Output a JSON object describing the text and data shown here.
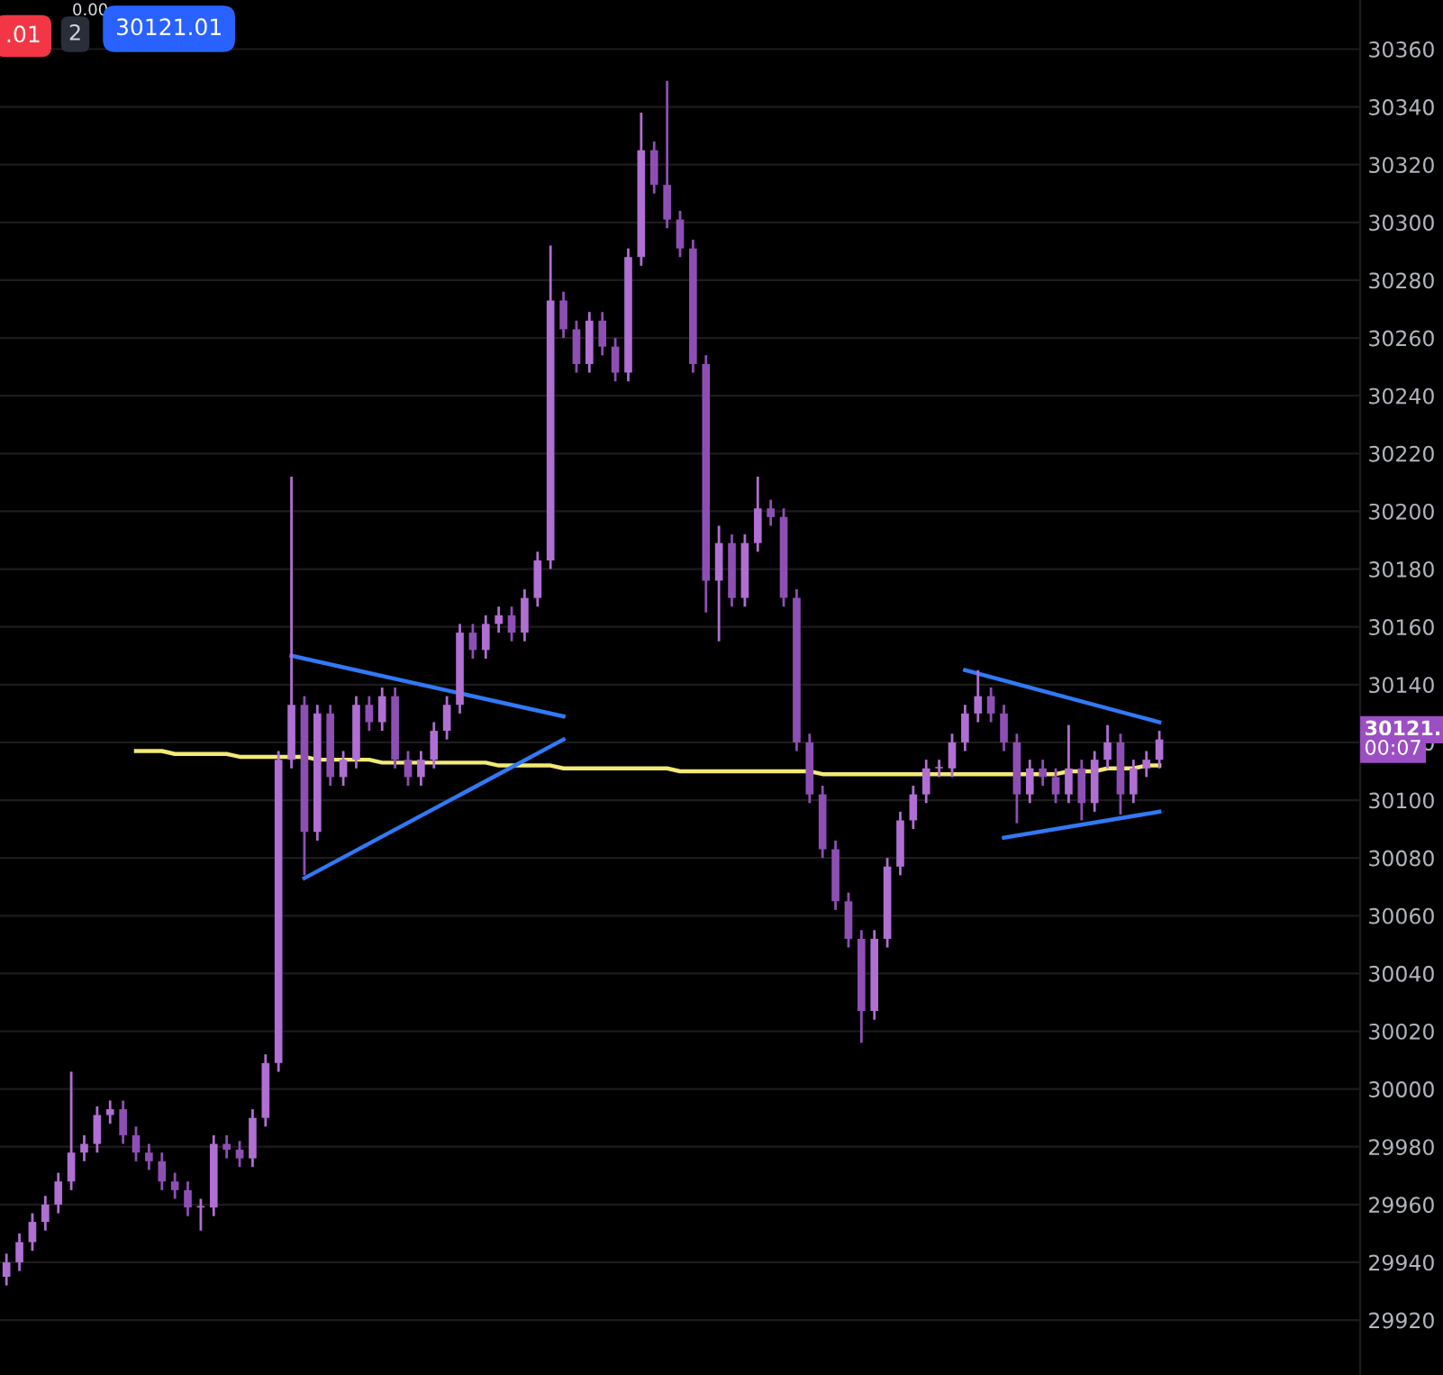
{
  "chart_data": {
    "type": "candlestick",
    "categories": [
      null,
      null,
      null,
      null,
      null,
      null,
      null,
      null,
      null,
      null,
      null,
      null,
      null,
      null,
      null,
      null,
      null,
      null,
      null,
      null,
      null,
      null,
      null,
      null,
      null,
      null,
      null,
      null,
      null,
      null,
      null,
      null,
      null,
      null,
      null,
      null,
      null,
      null,
      null,
      null,
      null,
      null,
      null,
      null,
      null,
      null,
      null,
      null,
      null,
      null,
      null,
      null,
      null,
      null,
      null,
      null,
      null,
      null,
      null,
      null,
      null,
      null,
      null,
      null,
      null,
      null,
      null,
      null,
      null,
      null,
      null,
      null,
      null,
      null,
      null,
      null,
      null,
      null,
      null,
      null,
      null,
      null,
      null,
      null,
      null,
      null,
      null,
      null,
      null,
      null
    ],
    "colors": [
      "#b06fd3",
      "#b06fd3",
      "#b06fd3",
      "#b06fd3",
      "#b06fd3",
      "#b06fd3",
      "#b06fd3",
      "#b06fd3",
      "#b06fd3",
      "#8e4fb5",
      "#8e4fb5",
      "#8e4fb5",
      "#8e4fb5",
      "#8e4fb5",
      "#8e4fb5",
      "#b06fd3",
      "#b06fd3",
      "#8e4fb5",
      "#8e4fb5",
      "#b06fd3",
      "#b06fd3",
      "#b06fd3",
      "#b06fd3",
      "#8e4fb5",
      "#b06fd3",
      "#8e4fb5",
      "#b06fd3",
      "#b06fd3",
      "#8e4fb5",
      "#b06fd3",
      "#8e4fb5",
      "#8e4fb5",
      "#b06fd3",
      "#b06fd3",
      "#b06fd3",
      "#b06fd3",
      "#8e4fb5",
      "#b06fd3",
      "#b06fd3",
      "#8e4fb5",
      "#b06fd3",
      "#b06fd3",
      "#b06fd3",
      "#8e4fb5",
      "#8e4fb5",
      "#b06fd3",
      "#8e4fb5",
      "#8e4fb5",
      "#b06fd3",
      "#b06fd3",
      "#8e4fb5",
      "#8e4fb5",
      "#8e4fb5",
      "#8e4fb5",
      "#8e4fb5",
      "#b06fd3",
      "#8e4fb5",
      "#b06fd3",
      "#b06fd3",
      "#8e4fb5",
      "#8e4fb5",
      "#8e4fb5",
      "#8e4fb5",
      "#8e4fb5",
      "#8e4fb5",
      "#8e4fb5",
      "#8e4fb5",
      "#b06fd3",
      "#b06fd3",
      "#b06fd3",
      "#b06fd3",
      "#b06fd3",
      "#b06fd3",
      "#b06fd3",
      "#b06fd3",
      "#b06fd3",
      "#8e4fb5",
      "#8e4fb5",
      "#8e4fb5",
      "#b06fd3",
      "#8e4fb5",
      "#8e4fb5",
      "#b06fd3",
      "#8e4fb5",
      "#b06fd3",
      "#b06fd3",
      "#8e4fb5",
      "#b06fd3",
      "#b06fd3",
      "#b06fd3"
    ],
    "ohlc": [
      [
        29935,
        29943,
        29932,
        29940
      ],
      [
        29940,
        29950,
        29937,
        29947
      ],
      [
        29947,
        29957,
        29944,
        29954
      ],
      [
        29954,
        29963,
        29951,
        29960
      ],
      [
        29960,
        29971,
        29957,
        29968
      ],
      [
        29968,
        30006,
        29965,
        29978
      ],
      [
        29978,
        29984,
        29975,
        29981
      ],
      [
        29981,
        29994,
        29978,
        29991
      ],
      [
        29991,
        29996,
        29988,
        29993
      ],
      [
        29993,
        29996,
        29981,
        29984
      ],
      [
        29984,
        29987,
        29975,
        29978
      ],
      [
        29978,
        29981,
        29972,
        29975
      ],
      [
        29975,
        29978,
        29965,
        29968
      ],
      [
        29968,
        29971,
        29962,
        29965
      ],
      [
        29965,
        29968,
        29956,
        29959
      ],
      [
        29959,
        29962,
        29951,
        29959
      ],
      [
        29959,
        29984,
        29956,
        29981
      ],
      [
        29981,
        29984,
        29976,
        29979
      ],
      [
        29979,
        29982,
        29973,
        29976
      ],
      [
        29976,
        29993,
        29973,
        29990
      ],
      [
        29990,
        30012,
        29987,
        30009
      ],
      [
        30009,
        30117,
        30006,
        30114
      ],
      [
        30114,
        30212,
        30111,
        30133
      ],
      [
        30133,
        30136,
        30074,
        30089
      ],
      [
        30089,
        30133,
        30086,
        30130
      ],
      [
        30130,
        30133,
        30105,
        30108
      ],
      [
        30108,
        30117,
        30105,
        30114
      ],
      [
        30114,
        30136,
        30111,
        30133
      ],
      [
        30133,
        30136,
        30124,
        30127
      ],
      [
        30127,
        30139,
        30124,
        30136
      ],
      [
        30136,
        30139,
        30111,
        30114
      ],
      [
        30114,
        30117,
        30105,
        30108
      ],
      [
        30108,
        30117,
        30105,
        30114
      ],
      [
        30114,
        30127,
        30111,
        30124
      ],
      [
        30124,
        30136,
        30121,
        30133
      ],
      [
        30133,
        30161,
        30130,
        30158
      ],
      [
        30158,
        30161,
        30149,
        30152
      ],
      [
        30152,
        30164,
        30149,
        30161
      ],
      [
        30161,
        30167,
        30158,
        30164
      ],
      [
        30164,
        30167,
        30155,
        30158
      ],
      [
        30158,
        30173,
        30155,
        30170
      ],
      [
        30170,
        30186,
        30167,
        30183
      ],
      [
        30183,
        30292,
        30180,
        30273
      ],
      [
        30273,
        30276,
        30260,
        30263
      ],
      [
        30263,
        30266,
        30248,
        30251
      ],
      [
        30251,
        30269,
        30248,
        30266
      ],
      [
        30266,
        30269,
        30254,
        30257
      ],
      [
        30257,
        30260,
        30245,
        30248
      ],
      [
        30248,
        30291,
        30245,
        30288
      ],
      [
        30288,
        30338,
        30285,
        30325
      ],
      [
        30325,
        30328,
        30310,
        30313
      ],
      [
        30313,
        30349,
        30298,
        30301
      ],
      [
        30301,
        30304,
        30288,
        30291
      ],
      [
        30291,
        30294,
        30248,
        30251
      ],
      [
        30251,
        30254,
        30165,
        30176
      ],
      [
        30176,
        30195,
        30155,
        30189
      ],
      [
        30189,
        30192,
        30167,
        30170
      ],
      [
        30170,
        30192,
        30167,
        30189
      ],
      [
        30189,
        30212,
        30186,
        30201
      ],
      [
        30201,
        30204,
        30195,
        30198
      ],
      [
        30198,
        30201,
        30167,
        30170
      ],
      [
        30170,
        30173,
        30117,
        30120
      ],
      [
        30120,
        30123,
        30099,
        30102
      ],
      [
        30102,
        30105,
        30080,
        30083
      ],
      [
        30083,
        30086,
        30062,
        30065
      ],
      [
        30065,
        30068,
        30049,
        30052
      ],
      [
        30052,
        30055,
        30016,
        30027
      ],
      [
        30027,
        30055,
        30024,
        30052
      ],
      [
        30052,
        30080,
        30049,
        30077
      ],
      [
        30077,
        30096,
        30074,
        30093
      ],
      [
        30093,
        30105,
        30090,
        30102
      ],
      [
        30102,
        30114,
        30099,
        30111
      ],
      [
        30111,
        30114,
        30108,
        30111
      ],
      [
        30111,
        30123,
        30108,
        30120
      ],
      [
        30120,
        30133,
        30117,
        30130
      ],
      [
        30130,
        30145,
        30127,
        30136
      ],
      [
        30136,
        30139,
        30127,
        30130
      ],
      [
        30130,
        30133,
        30117,
        30120
      ],
      [
        30120,
        30123,
        30092,
        30102
      ],
      [
        30102,
        30114,
        30099,
        30111
      ],
      [
        30111,
        30114,
        30105,
        30108
      ],
      [
        30108,
        30111,
        30099,
        30102
      ],
      [
        30102,
        30126,
        30099,
        30111
      ],
      [
        30111,
        30114,
        30093,
        30099
      ],
      [
        30099,
        30117,
        30096,
        30114
      ],
      [
        30114,
        30126,
        30111,
        30120
      ],
      [
        30120,
        30123,
        30095,
        30102
      ],
      [
        30102,
        30114,
        30099,
        30111
      ],
      [
        30111,
        30117,
        30108,
        30114
      ],
      [
        30114,
        30124,
        30111,
        30121.01
      ]
    ],
    "series": [
      {
        "type": "line",
        "color": "#f2ea75",
        "values": [
          null,
          null,
          null,
          null,
          null,
          null,
          null,
          null,
          null,
          null,
          30117,
          30117,
          30117,
          30116,
          30116,
          30116,
          30116,
          30116,
          30115,
          30115,
          30115,
          30115,
          30115,
          30115,
          30114,
          30114,
          30114,
          30114,
          30114,
          30113,
          30113,
          30113,
          30113,
          30113,
          30113,
          30113,
          30113,
          30113,
          30112,
          30112,
          30112,
          30112,
          30112,
          30111,
          30111,
          30111,
          30111,
          30111,
          30111,
          30111,
          30111,
          30111,
          30110,
          30110,
          30110,
          30110,
          30110,
          30110,
          30110,
          30110,
          30110,
          30110,
          30110,
          30109,
          30109,
          30109,
          30109,
          30109,
          30109,
          30109,
          30109,
          30109,
          30109,
          30109,
          30109,
          30109,
          30109,
          30109,
          30109,
          30109,
          30109,
          30109,
          30110,
          30110,
          30110,
          30111,
          30111,
          30111,
          30112,
          30112
        ]
      },
      {
        "type": "line",
        "color": "#3179f5",
        "values": [
          null,
          null,
          null,
          null,
          null,
          null,
          null,
          null,
          null,
          null,
          null,
          null,
          null,
          null,
          null,
          null,
          null,
          null,
          null,
          null,
          null,
          null,
          30150,
          null,
          null,
          null,
          null,
          null,
          null,
          null,
          null,
          null,
          null,
          null,
          null,
          null,
          null,
          null,
          null,
          null,
          null,
          null,
          null,
          30129,
          null,
          null,
          null,
          null,
          null,
          null,
          null,
          null,
          null,
          null,
          null,
          null,
          null,
          null,
          null,
          null,
          null,
          null,
          null,
          null,
          null,
          null,
          null,
          null,
          null,
          null,
          null,
          null,
          null,
          null,
          null,
          null,
          null,
          null,
          null,
          null,
          null,
          null,
          null,
          null,
          null,
          null,
          null,
          null,
          null,
          null
        ]
      },
      {
        "type": "line",
        "color": "#3179f5",
        "values": [
          null,
          null,
          null,
          null,
          null,
          null,
          null,
          null,
          null,
          null,
          null,
          null,
          null,
          null,
          null,
          null,
          null,
          null,
          null,
          null,
          null,
          null,
          null,
          30073,
          null,
          null,
          null,
          null,
          null,
          null,
          null,
          null,
          null,
          null,
          null,
          null,
          null,
          null,
          null,
          null,
          null,
          null,
          null,
          30121,
          null,
          null,
          null,
          null,
          null,
          null,
          null,
          null,
          null,
          null,
          null,
          null,
          null,
          null,
          null,
          null,
          null,
          null,
          null,
          null,
          null,
          null,
          null,
          null,
          null,
          null,
          null,
          null,
          null,
          null,
          null,
          null,
          null,
          null,
          null,
          null,
          null,
          null,
          null,
          null,
          null,
          null,
          null,
          null,
          null,
          null
        ]
      },
      {
        "type": "line",
        "color": "#3179f5",
        "values": [
          null,
          null,
          null,
          null,
          null,
          null,
          null,
          null,
          null,
          null,
          null,
          null,
          null,
          null,
          null,
          null,
          null,
          null,
          null,
          null,
          null,
          null,
          null,
          null,
          null,
          null,
          null,
          null,
          null,
          null,
          null,
          null,
          null,
          null,
          null,
          null,
          null,
          null,
          null,
          null,
          null,
          null,
          null,
          null,
          null,
          null,
          null,
          null,
          null,
          null,
          null,
          null,
          null,
          null,
          null,
          null,
          null,
          null,
          null,
          null,
          null,
          null,
          null,
          null,
          null,
          null,
          null,
          null,
          null,
          null,
          null,
          null,
          null,
          null,
          30145,
          null,
          null,
          null,
          null,
          null,
          null,
          null,
          null,
          null,
          null,
          null,
          null,
          null,
          null,
          30127
        ]
      },
      {
        "type": "line",
        "color": "#3179f5",
        "values": [
          null,
          null,
          null,
          null,
          null,
          null,
          null,
          null,
          null,
          null,
          null,
          null,
          null,
          null,
          null,
          null,
          null,
          null,
          null,
          null,
          null,
          null,
          null,
          null,
          null,
          null,
          null,
          null,
          null,
          null,
          null,
          null,
          null,
          null,
          null,
          null,
          null,
          null,
          null,
          null,
          null,
          null,
          null,
          null,
          null,
          null,
          null,
          null,
          null,
          null,
          null,
          null,
          null,
          null,
          null,
          null,
          null,
          null,
          null,
          null,
          null,
          null,
          null,
          null,
          null,
          null,
          null,
          null,
          null,
          null,
          null,
          null,
          null,
          null,
          null,
          null,
          null,
          30087,
          null,
          null,
          null,
          null,
          null,
          null,
          null,
          null,
          null,
          null,
          null,
          30096
        ]
      }
    ],
    "ylim": [
      29901,
      30377
    ],
    "yticks": [
      29920,
      29940,
      29960,
      29980,
      30000,
      30020,
      30040,
      30060,
      30080,
      30100,
      30120,
      30140,
      30160,
      30180,
      30200,
      30220,
      30240,
      30260,
      30280,
      30300,
      30320,
      30340,
      30360
    ],
    "grid": "y",
    "tick_labels": "y",
    "annotations": [
      ".01",
      "0.00",
      "2",
      "30121.01",
      "30121.",
      "00:07"
    ]
  }
}
